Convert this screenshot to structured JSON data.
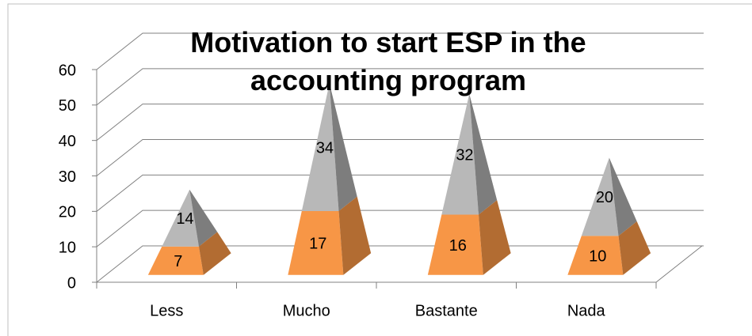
{
  "chart_data": {
    "type": "pyramid-stacked-3d",
    "title": "Motivation to start  ESP in the accounting program",
    "categories": [
      "Less",
      "Mucho",
      "Bastante",
      "Nada"
    ],
    "series": [
      {
        "color": "#f79646",
        "values": [
          7,
          17,
          16,
          10
        ]
      },
      {
        "color": "#b8b8b8",
        "values": [
          14,
          34,
          32,
          20
        ]
      }
    ],
    "ylim": [
      0,
      60
    ],
    "yticks": [
      0,
      10,
      20,
      30,
      40,
      50,
      60
    ],
    "grid": true
  }
}
